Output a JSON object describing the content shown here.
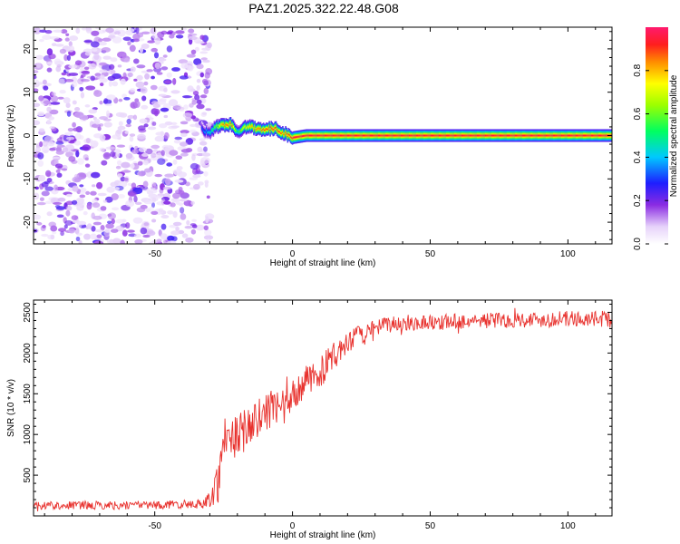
{
  "title": "PAZ1.2025.322.22.48.G08",
  "colorbar": {
    "label": "Normalized spectral amplitude",
    "ticks": [
      "0.0",
      "0.2",
      "0.4",
      "0.6",
      "0.8"
    ],
    "tick_values": [
      0.0,
      0.2,
      0.4,
      0.6,
      0.8
    ],
    "range": [
      0,
      1
    ]
  },
  "chart_data": [
    {
      "type": "heatmap",
      "title": "PAZ1.2025.322.22.48.G08",
      "xlabel": "Height of straight line (km)",
      "ylabel": "Frequency (Hz)",
      "xlim": [
        -94,
        116
      ],
      "ylim": [
        -25,
        25
      ],
      "xticks": [
        -50,
        0,
        50,
        100
      ],
      "xtick_labels": [
        "-50",
        "0",
        "50",
        "100"
      ],
      "yticks": [
        -20,
        -10,
        0,
        10,
        20
      ],
      "ytick_labels": [
        "-20",
        "-10",
        "0",
        "10",
        "20"
      ],
      "noise_region_x": [
        -94,
        -30
      ],
      "noise_amplitude_range": [
        0.05,
        0.25
      ],
      "signal_track": {
        "x": [
          -33,
          -30,
          -28,
          -25,
          -22,
          -20,
          -18,
          -15,
          -12,
          -9,
          -6,
          -3,
          0,
          5,
          20,
          40,
          60,
          80,
          100,
          116
        ],
        "frequency": [
          1.5,
          0.5,
          2,
          2.5,
          2.5,
          0.5,
          2,
          2,
          1.5,
          1.5,
          1.5,
          0.5,
          -0.5,
          0,
          0,
          0,
          0,
          0,
          0,
          0
        ],
        "amplitude": [
          0.3,
          0.45,
          0.6,
          0.85,
          0.85,
          0.5,
          0.7,
          0.8,
          0.85,
          0.9,
          0.9,
          0.85,
          0.95,
          0.95,
          0.95,
          0.95,
          0.95,
          0.95,
          0.95,
          0.95
        ]
      }
    },
    {
      "type": "line",
      "xlabel": "Height of straight line (km)",
      "ylabel": "SNR (10 * v/v)",
      "xlim": [
        -94,
        116
      ],
      "ylim": [
        0,
        2650
      ],
      "xticks": [
        -50,
        0,
        50,
        100
      ],
      "xtick_labels": [
        "-50",
        "0",
        "50",
        "100"
      ],
      "yticks": [
        500,
        1000,
        1500,
        2000,
        2500
      ],
      "ytick_labels": [
        "500",
        "1000",
        "1500",
        "2000",
        "2500"
      ],
      "color": "#e8322e",
      "series": [
        {
          "name": "SNR",
          "x": [
            -94,
            -80,
            -60,
            -40,
            -32,
            -29,
            -27,
            -25,
            -23,
            -21,
            -19,
            -17,
            -15,
            -13,
            -11,
            -9,
            -7,
            -5,
            -3,
            -1,
            1,
            3,
            5,
            8,
            11,
            14,
            17,
            20,
            23,
            26,
            30,
            35,
            40,
            50,
            60,
            70,
            80,
            90,
            100,
            110,
            116
          ],
          "mean": [
            130,
            130,
            130,
            140,
            150,
            250,
            450,
            900,
            1050,
            950,
            1000,
            1100,
            1100,
            1150,
            1250,
            1300,
            1300,
            1350,
            1300,
            1400,
            1500,
            1600,
            1650,
            1700,
            1800,
            1950,
            2000,
            2100,
            2200,
            2250,
            2300,
            2350,
            2370,
            2380,
            2390,
            2400,
            2410,
            2410,
            2420,
            2420,
            2420
          ],
          "spread": [
            80,
            80,
            80,
            80,
            90,
            200,
            450,
            500,
            550,
            450,
            400,
            450,
            450,
            400,
            400,
            400,
            350,
            350,
            350,
            350,
            300,
            300,
            300,
            300,
            300,
            250,
            250,
            220,
            200,
            180,
            160,
            160,
            150,
            150,
            150,
            150,
            150,
            150,
            150,
            150,
            150
          ]
        }
      ]
    }
  ]
}
